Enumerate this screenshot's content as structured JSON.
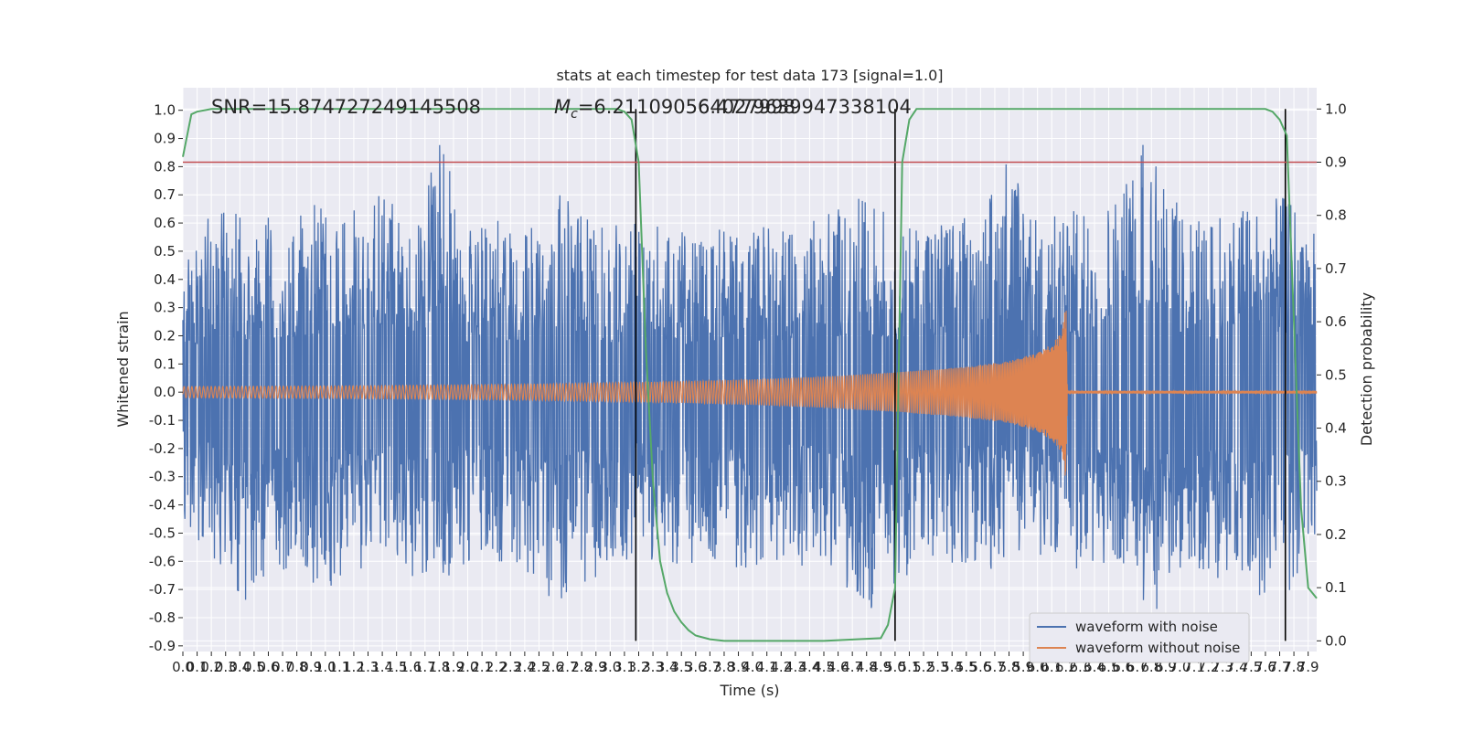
{
  "chart_data": {
    "type": "line",
    "title": "stats at each timestep for test data 173 [signal=1.0]",
    "xlabel": "Time (s)",
    "ylabel": "Whitened strain",
    "y2label": "Detection probability",
    "xlim": [
      0.0,
      7.96
    ],
    "ylim": [
      -0.92,
      1.08
    ],
    "y2lim": [
      -0.02,
      1.04
    ],
    "grid": true,
    "legend_position": "lower-right",
    "x_ticks": [
      "0.0",
      "0.1",
      "0.2",
      "0.3",
      "0.4",
      "0.5",
      "0.6",
      "0.7",
      "0.8",
      "0.9",
      "1.0",
      "1.1",
      "1.2",
      "1.3",
      "1.4",
      "1.5",
      "1.6",
      "1.7",
      "1.8",
      "1.9",
      "2.0",
      "2.1",
      "2.2",
      "2.3",
      "2.4",
      "2.5",
      "2.6",
      "2.7",
      "2.8",
      "2.9",
      "3.0",
      "3.1",
      "3.2",
      "3.3",
      "3.4",
      "3.5",
      "3.6",
      "3.7",
      "3.8",
      "3.9",
      "4.0",
      "4.1",
      "4.2",
      "4.3",
      "4.4",
      "4.5",
      "4.6",
      "4.7",
      "4.8",
      "4.9",
      "5.0",
      "5.1",
      "5.2",
      "5.3",
      "5.4",
      "5.5",
      "5.6",
      "5.7",
      "5.8",
      "5.9",
      "6.0",
      "6.1",
      "6.2",
      "6.3",
      "6.4",
      "6.5",
      "6.6",
      "6.7",
      "6.8",
      "6.9",
      "7.0",
      "7.1",
      "7.2",
      "7.3",
      "7.4",
      "7.5",
      "7.6",
      "7.7",
      "7.8",
      "7.9"
    ],
    "y_ticks": [
      "1.0",
      "0.9",
      "0.8",
      "0.7",
      "0.6",
      "0.5",
      "0.4",
      "0.3",
      "0.2",
      "0.1",
      "0.0",
      "-0.1",
      "-0.2",
      "-0.3",
      "-0.4",
      "-0.5",
      "-0.6",
      "-0.7",
      "-0.8",
      "-0.9"
    ],
    "y2_ticks": [
      "1.0",
      "0.9",
      "0.8",
      "0.7",
      "0.6",
      "0.5",
      "0.4",
      "0.3",
      "0.2",
      "0.1",
      "0.0"
    ],
    "annotations": {
      "snr": "SNR=15.874727249145508",
      "mc_prefix": "M",
      "mc_sub": "c",
      "mc_value1": "=6.211090564027998",
      "mc_value2": "6.4779639947338104"
    },
    "series": [
      {
        "name": "waveform with noise",
        "color": "#4c72b0",
        "axis": "left",
        "description": "noise envelope",
        "x": [
          0.0,
          0.2,
          0.4,
          0.6,
          0.8,
          1.0,
          1.2,
          1.4,
          1.6,
          1.8,
          2.0,
          2.2,
          2.4,
          2.6,
          2.8,
          3.0,
          3.2,
          3.4,
          3.6,
          3.8,
          4.0,
          4.2,
          4.4,
          4.6,
          4.8,
          5.0,
          5.2,
          5.4,
          5.6,
          5.8,
          6.0,
          6.2,
          6.4,
          6.6,
          6.8,
          7.0,
          7.2,
          7.4,
          7.6,
          7.8,
          7.96
        ],
        "upper": [
          0.45,
          0.66,
          0.63,
          0.62,
          0.64,
          0.68,
          0.66,
          0.74,
          0.6,
          0.9,
          0.59,
          0.61,
          0.6,
          0.72,
          0.65,
          0.59,
          0.6,
          0.61,
          0.55,
          0.63,
          0.61,
          0.6,
          0.65,
          0.66,
          0.7,
          0.62,
          0.6,
          0.61,
          0.64,
          0.88,
          0.6,
          0.66,
          0.62,
          0.74,
          1.0,
          0.64,
          0.62,
          0.65,
          0.68,
          0.7,
          0.55
        ],
        "lower": [
          -0.45,
          -0.6,
          -0.78,
          -0.66,
          -0.62,
          -0.72,
          -0.64,
          -0.62,
          -0.66,
          -0.68,
          -0.6,
          -0.61,
          -0.64,
          -0.76,
          -0.7,
          -0.62,
          -0.6,
          -0.65,
          -0.6,
          -0.62,
          -0.64,
          -0.6,
          -0.63,
          -0.66,
          -0.8,
          -0.68,
          -0.62,
          -0.62,
          -0.64,
          -0.62,
          -0.6,
          -0.62,
          -0.66,
          -0.65,
          -0.8,
          -0.65,
          -0.64,
          -0.72,
          -0.76,
          -0.7,
          -0.55
        ]
      },
      {
        "name": "waveform without noise",
        "color": "#dd8452",
        "axis": "left",
        "description": "chirp amplitude envelope",
        "x": [
          0.0,
          0.5,
          1.0,
          1.5,
          2.0,
          2.5,
          3.0,
          3.5,
          4.0,
          4.5,
          5.0,
          5.5,
          5.8,
          6.0,
          6.1,
          6.15,
          6.18,
          6.2,
          6.21,
          7.96
        ],
        "amplitude": [
          0.02,
          0.021,
          0.022,
          0.024,
          0.026,
          0.029,
          0.033,
          0.038,
          0.045,
          0.055,
          0.07,
          0.09,
          0.11,
          0.14,
          0.17,
          0.2,
          0.24,
          0.33,
          0.005,
          0.005
        ]
      },
      {
        "name": "detection probability",
        "color": "#55a868",
        "axis": "right",
        "x": [
          0.0,
          0.06,
          0.1,
          0.2,
          0.5,
          1.0,
          2.0,
          3.0,
          3.05,
          3.1,
          3.15,
          3.2,
          3.25,
          3.3,
          3.35,
          3.4,
          3.45,
          3.5,
          3.55,
          3.6,
          3.7,
          3.8,
          3.9,
          4.0,
          4.5,
          4.9,
          4.95,
          5.0,
          5.05,
          5.1,
          5.15,
          5.2,
          5.3,
          5.5,
          6.0,
          7.0,
          7.5,
          7.6,
          7.65,
          7.7,
          7.75,
          7.8,
          7.85,
          7.9,
          7.96
        ],
        "y": [
          0.91,
          0.99,
          0.995,
          1.0,
          1.0,
          1.0,
          1.0,
          1.0,
          1.0,
          0.995,
          0.98,
          0.9,
          0.55,
          0.3,
          0.15,
          0.09,
          0.055,
          0.035,
          0.02,
          0.01,
          0.003,
          0.0,
          0.0,
          0.0,
          0.0,
          0.005,
          0.03,
          0.1,
          0.9,
          0.98,
          1.0,
          1.0,
          1.0,
          1.0,
          1.0,
          1.0,
          1.0,
          1.0,
          0.995,
          0.98,
          0.95,
          0.6,
          0.25,
          0.1,
          0.08
        ]
      }
    ],
    "threshold_line": {
      "value": 0.9,
      "axis": "right",
      "color": "#c44e52"
    },
    "vertical_lines": [
      3.18,
      5.0,
      7.74
    ]
  }
}
